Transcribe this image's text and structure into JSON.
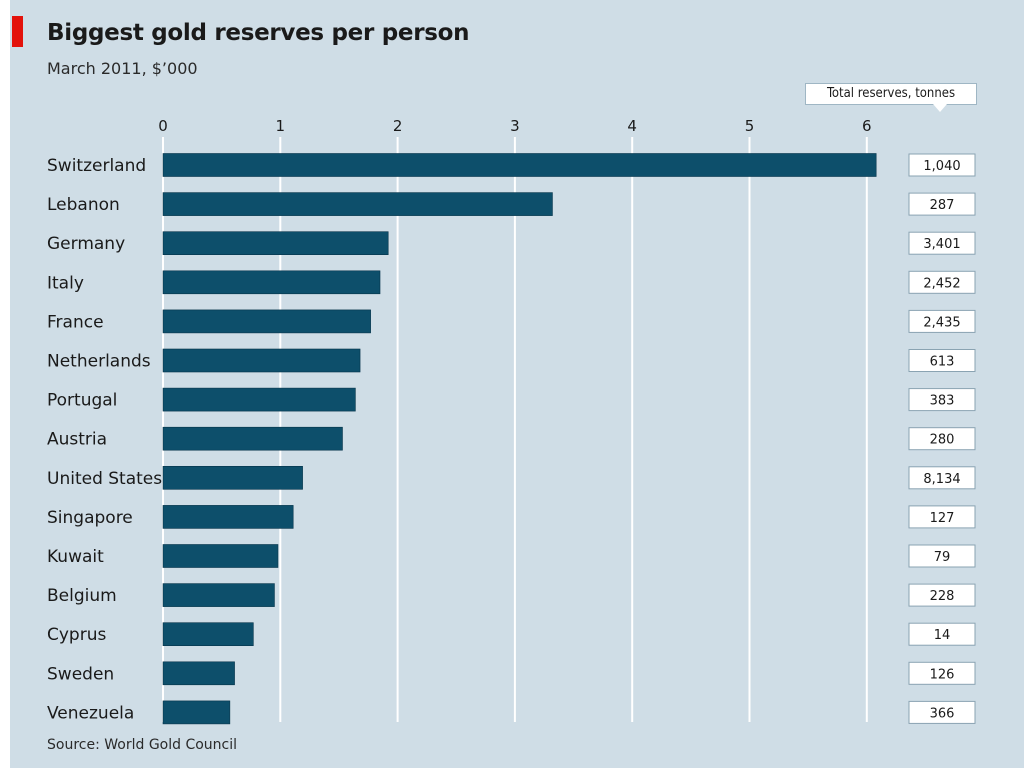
{
  "title": "Biggest gold reserves per person",
  "subtitle": "March 2011, $’000",
  "reserves_header": "Total reserves, tonnes",
  "source": "Source: World Gold Council",
  "colors": {
    "bar": "#0d4f6b",
    "background": "#cfdde6",
    "grid": "#ffffff",
    "accent": "#e3120b"
  },
  "chart_data": {
    "type": "bar",
    "orientation": "horizontal",
    "title": "Biggest gold reserves per person",
    "subtitle": "March 2011, $’000",
    "categories": [
      "Switzerland",
      "Lebanon",
      "Germany",
      "Italy",
      "France",
      "Netherlands",
      "Portugal",
      "Austria",
      "United States",
      "Singapore",
      "Kuwait",
      "Belgium",
      "Cyprus",
      "Sweden",
      "Venezuela"
    ],
    "values": [
      6.08,
      3.32,
      1.92,
      1.85,
      1.77,
      1.68,
      1.64,
      1.53,
      1.19,
      1.11,
      0.98,
      0.95,
      0.77,
      0.61,
      0.57
    ],
    "xticks": [
      0,
      1,
      2,
      3,
      4,
      5,
      6
    ],
    "xlim": [
      0,
      6.5
    ],
    "grid": true,
    "total_reserves_tonnes": [
      "1,040",
      "287",
      "3,401",
      "2,452",
      "2,435",
      "613",
      "383",
      "280",
      "8,134",
      "127",
      "79",
      "228",
      "14",
      "126",
      "366"
    ]
  }
}
